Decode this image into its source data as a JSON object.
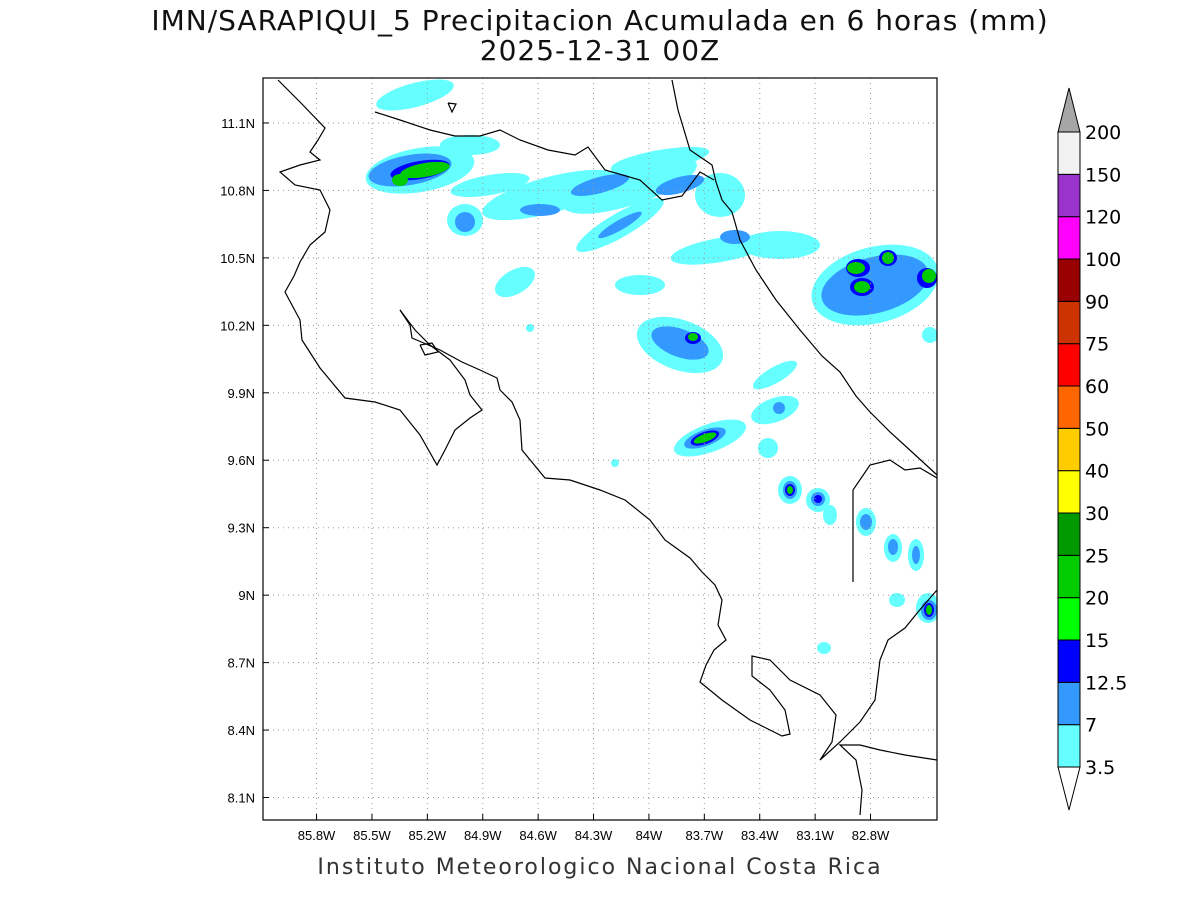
{
  "title": {
    "line1": "IMN/SARAPIQUI_5 Precipitacion Acumulada en 6 horas (mm)",
    "line2": "2025-12-31 00Z"
  },
  "footer": "Instituto Meteorologico Nacional Costa Rica",
  "map": {
    "lon_range": [
      -86.09,
      -82.44
    ],
    "lat_range": [
      8.0,
      11.3
    ],
    "lon_ticks": [
      {
        "value": -85.8,
        "label": "85.8W"
      },
      {
        "value": -85.5,
        "label": "85.5W"
      },
      {
        "value": -85.2,
        "label": "85.2W"
      },
      {
        "value": -84.9,
        "label": "84.9W"
      },
      {
        "value": -84.6,
        "label": "84.6W"
      },
      {
        "value": -84.3,
        "label": "84.3W"
      },
      {
        "value": -84.0,
        "label": "84W"
      },
      {
        "value": -83.7,
        "label": "83.7W"
      },
      {
        "value": -83.4,
        "label": "83.4W"
      },
      {
        "value": -83.1,
        "label": "83.1W"
      },
      {
        "value": -82.8,
        "label": "82.8W"
      }
    ],
    "lat_ticks": [
      {
        "value": 11.1,
        "label": "11.1N"
      },
      {
        "value": 10.8,
        "label": "10.8N"
      },
      {
        "value": 10.5,
        "label": "10.5N"
      },
      {
        "value": 10.2,
        "label": "10.2N"
      },
      {
        "value": 9.9,
        "label": "9.9N"
      },
      {
        "value": 9.6,
        "label": "9.6N"
      },
      {
        "value": 9.3,
        "label": "9.3N"
      },
      {
        "value": 9.0,
        "label": "9N"
      },
      {
        "value": 8.7,
        "label": "8.7N"
      },
      {
        "value": 8.4,
        "label": "8.4N"
      },
      {
        "value": 8.1,
        "label": "8.1N"
      }
    ]
  },
  "colorbar": {
    "labels": [
      "3.5",
      "7",
      "12.5",
      "15",
      "20",
      "25",
      "30",
      "40",
      "50",
      "60",
      "75",
      "90",
      "100",
      "120",
      "150",
      "200"
    ],
    "colors": [
      "#66ffff",
      "#3399ff",
      "#0000ff",
      "#00ff00",
      "#00cc00",
      "#009900",
      "#ffff00",
      "#ffcc00",
      "#ff6600",
      "#ff0000",
      "#cc3300",
      "#990000",
      "#ff00ff",
      "#9933cc",
      "#f2f2f2"
    ],
    "over_color": "#a6a6a6",
    "under_color": "#ffffff"
  }
}
